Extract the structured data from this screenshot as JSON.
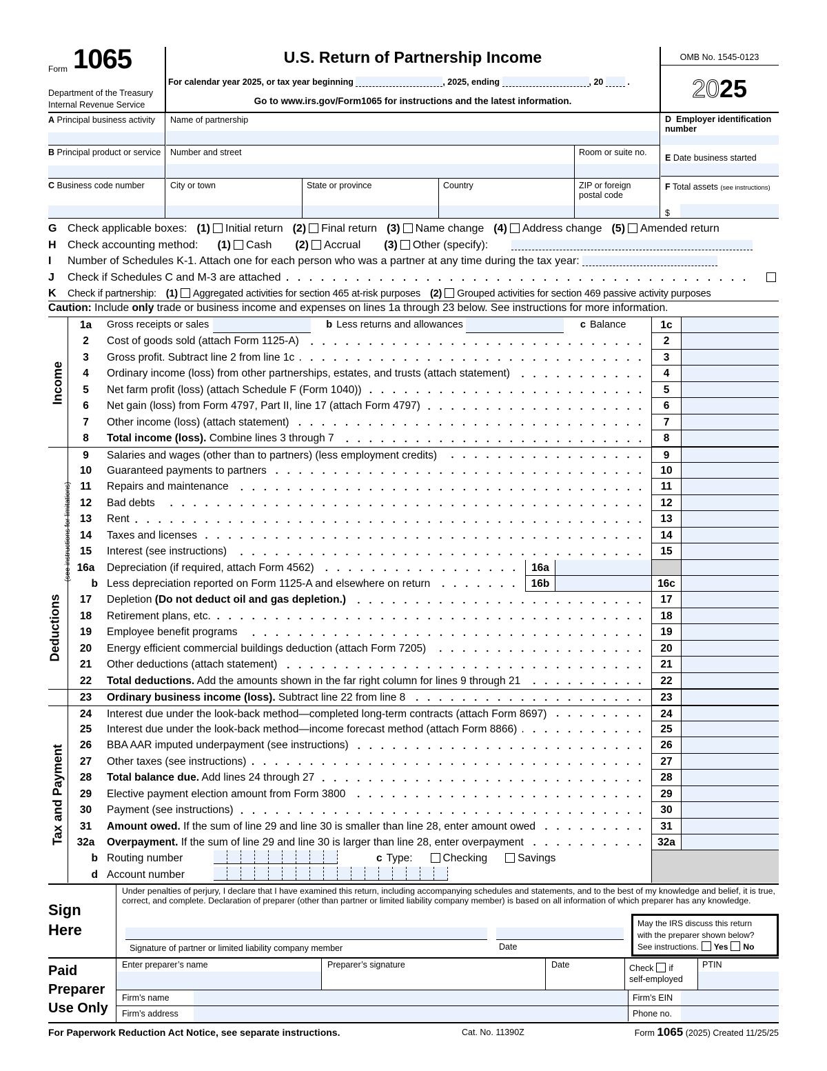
{
  "header": {
    "form_word": "Form",
    "form_number": "1065",
    "dept1": "Department of the Treasury",
    "dept2": "Internal Revenue Service",
    "title": "U.S. Return of Partnership Income",
    "calendar": "For calendar year 2025, or tax year beginning",
    "comma2025": ", 2025, ending",
    "comma20": ", 20",
    "period": ".",
    "goto": "Go to www.irs.gov/Form1065 for instructions and the latest information.",
    "omb": "OMB No. 1545-0123",
    "year_outline": "20",
    "year_bold": "25"
  },
  "id": {
    "A": "A",
    "A_label": "Principal business activity",
    "B": "B",
    "B_label": "Principal product or service",
    "C": "C",
    "C_label": "Business code number",
    "name": "Name of partnership",
    "street": "Number and street",
    "room": "Room or suite no.",
    "city": "City or town",
    "state": "State or province",
    "country": "Country",
    "zip": "ZIP or foreign postal code",
    "D": "D",
    "D_label": "Employer identification number",
    "E": "E",
    "E_label": "Date business started",
    "F": "F",
    "F_label": "Total assets",
    "F_note": "(see instructions)",
    "dollar": "$"
  },
  "checks": {
    "G": {
      "letter": "G",
      "label": "Check applicable boxes:",
      "items": [
        {
          "n": "(1)",
          "t": "Initial return"
        },
        {
          "n": "(2)",
          "t": "Final return"
        },
        {
          "n": "(3)",
          "t": "Name change"
        },
        {
          "n": "(4)",
          "t": "Address change"
        },
        {
          "n": "(5)",
          "t": "Amended return"
        }
      ]
    },
    "H": {
      "letter": "H",
      "label": "Check accounting method:",
      "items": [
        {
          "n": "(1)",
          "t": "Cash"
        },
        {
          "n": "(2)",
          "t": "Accrual"
        },
        {
          "n": "(3)",
          "t": "Other (specify):"
        }
      ]
    },
    "I": {
      "letter": "I",
      "label": "Number of Schedules K-1. Attach one for each person who was a partner at any time during the tax year:"
    },
    "J": {
      "letter": "J",
      "label": "Check if Schedules C and M-3 are attached"
    },
    "K": {
      "letter": "K",
      "label": "Check if partnership:",
      "items": [
        {
          "n": "(1)",
          "t": "Aggregated activities for section 465 at-risk purposes"
        },
        {
          "n": "(2)",
          "t": "Grouped activities for section 469 passive activity purposes"
        }
      ]
    }
  },
  "caution": {
    "bold1": "Caution:",
    "t1": " Include ",
    "bold2": "only",
    "t2": " trade or business income and expenses on lines 1a through 23 below. See instructions for more information."
  },
  "sections": {
    "income": "Income",
    "deductions": "Deductions",
    "deductions_note": "(see instructions for limitations)",
    "tax": "Tax and Payment"
  },
  "line1": {
    "n": "1a",
    "t": "Gross receipts or sales",
    "b": "b",
    "bt": "Less returns and allowances",
    "c": "c",
    "ct": "Balance",
    "box": "1c"
  },
  "lines": [
    {
      "n": "2",
      "t": "Cost of goods sold (attach Form 1125-A)",
      "box": "2"
    },
    {
      "n": "3",
      "t": "Gross profit. Subtract line 2 from line 1c",
      "box": "3"
    },
    {
      "n": "4",
      "t": "Ordinary income (loss) from other partnerships, estates, and trusts (attach statement)",
      "box": "4"
    },
    {
      "n": "5",
      "t": "Net farm profit (loss) (attach Schedule F (Form 1040))",
      "box": "5"
    },
    {
      "n": "6",
      "t": "Net gain (loss) from Form 4797, Part II, line 17 (attach Form 4797)",
      "box": "6"
    },
    {
      "n": "7",
      "t": "Other income (loss) (attach statement)",
      "box": "7"
    },
    {
      "n": "8",
      "bold": "Total income (loss).",
      "t": " Combine lines 3 through 7",
      "box": "8"
    },
    {
      "n": "9",
      "t": "Salaries and wages (other than to partners) (less employment credits)",
      "box": "9",
      "sec": true
    },
    {
      "n": "10",
      "t": "Guaranteed payments to partners",
      "box": "10"
    },
    {
      "n": "11",
      "t": "Repairs and maintenance",
      "box": "11"
    },
    {
      "n": "12",
      "t": "Bad debts",
      "box": "12"
    },
    {
      "n": "13",
      "t": "Rent",
      "box": "13"
    },
    {
      "n": "14",
      "t": "Taxes and licenses",
      "box": "14"
    },
    {
      "n": "15",
      "t": "Interest (see instructions)",
      "box": "15"
    },
    {
      "n": "16a",
      "t": "Depreciation (if required, attach Form 4562)",
      "inner": "16a",
      "box": "",
      "grayBox": true
    },
    {
      "n": "b",
      "t": "Less depreciation reported on Form 1125-A and elsewhere on return",
      "inner": "16b",
      "box": "16c"
    },
    {
      "n": "17",
      "t": "Depletion ",
      "bold2": "(Do not deduct oil and gas depletion.)",
      "box": "17"
    },
    {
      "n": "18",
      "t": "Retirement plans, etc.",
      "box": "18"
    },
    {
      "n": "19",
      "t": "Employee benefit programs",
      "box": "19"
    },
    {
      "n": "20",
      "t": "Energy efficient commercial buildings deduction (attach Form 7205)",
      "box": "20"
    },
    {
      "n": "21",
      "t": "Other deductions (attach statement)",
      "box": "21"
    },
    {
      "n": "22",
      "bold": "Total deductions.",
      "t": " Add the amounts shown in the far right column for lines 9 through 21",
      "box": "22"
    },
    {
      "n": "23",
      "bold": "Ordinary business income (loss).",
      "t": " Subtract line 22 from line 8",
      "box": "23",
      "sec": true
    },
    {
      "n": "24",
      "t": "Interest due under the look-back method—completed long-term contracts (attach Form 8697)",
      "box": "24",
      "sec": true
    },
    {
      "n": "25",
      "t": "Interest due under the look-back method—income forecast method (attach Form 8866)",
      "box": "25"
    },
    {
      "n": "26",
      "t": "BBA AAR imputed underpayment (see instructions)",
      "box": "26"
    },
    {
      "n": "27",
      "t": "Other taxes (see instructions)",
      "box": "27"
    },
    {
      "n": "28",
      "bold": "Total balance due.",
      "t": " Add lines 24 through 27",
      "box": "28"
    },
    {
      "n": "29",
      "t": "Elective payment election amount from Form 3800",
      "box": "29"
    },
    {
      "n": "30",
      "t": "Payment (see instructions)",
      "box": "30"
    },
    {
      "n": "31",
      "bold": "Amount owed.",
      "t": " If the sum of line 29 and line 30 is smaller than line 28, enter amount owed",
      "box": "31"
    },
    {
      "n": "32a",
      "bold": "Overpayment.",
      "t": " If the sum of line 29 and line 30 is larger than line 28, enter overpayment",
      "box": "32a"
    }
  ],
  "bank": {
    "b": "b",
    "routing": "Routing number",
    "c": "c",
    "type": "Type:",
    "checking": "Checking",
    "savings": "Savings",
    "d": "d",
    "account": "Account number"
  },
  "sign": {
    "title1": "Sign",
    "title2": "Here",
    "perjury": "Under penalties of perjury, I declare that I have examined this return, including accompanying schedules and statements, and to the best of my knowledge and belief, it is true, correct, and complete. Declaration of preparer (other than partner or limited liability company member) is based on all information of which preparer has any knowledge.",
    "sig_label": "Signature of partner or limited liability company member",
    "date": "Date",
    "discuss1": "May the IRS discuss this return",
    "discuss2": "with the preparer shown below?",
    "discuss3": "See instructions.",
    "yes": "Yes",
    "no": "No"
  },
  "preparer": {
    "t1": "Paid",
    "t2": "Preparer",
    "t3": "Use Only",
    "name": "Enter preparer’s name",
    "sig": "Preparer’s signature",
    "date": "Date",
    "check": "Check",
    "if": "if",
    "self": "self-employed",
    "ptin": "PTIN",
    "firm": "Firm’s name",
    "firm_ein": "Firm’s EIN",
    "address": "Firm’s address",
    "phone": "Phone no."
  },
  "footer": {
    "left": "For Paperwork Reduction Act Notice, see separate instructions.",
    "cat": "Cat. No. 11390Z",
    "form": "Form",
    "num": "1065",
    "rest": "(2025) Created 11/25/25"
  }
}
